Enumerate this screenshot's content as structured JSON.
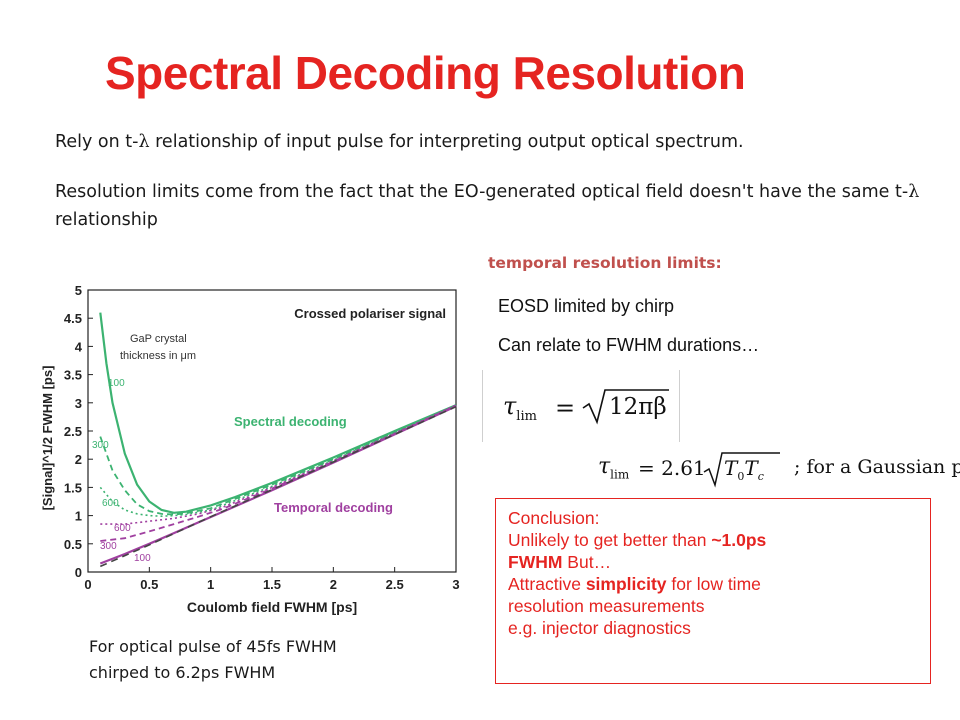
{
  "title": "Spectral Decoding Resolution",
  "para1": {
    "prefix": "Rely on t-",
    "lambda": "λ",
    "suffix": " relationship of input pulse for interpreting output optical spectrum."
  },
  "para2": {
    "prefix": "Resolution limits come from the fact that the EO-generated optical field doesn't have the same t-",
    "lambda": "λ",
    "suffix": " relationship"
  },
  "subheading": "temporal resolution limits:",
  "right": {
    "line1": "EOSD limited by chirp",
    "line2": "Can relate to FWHM durations…"
  },
  "equations": {
    "eq1": {
      "lhs": "τ",
      "lhs_sub": "lim",
      "eq": "=",
      "coef": "12πβ"
    },
    "eq2": {
      "lhs": "τ",
      "lhs_sub": "lim",
      "eq": "= 2.61",
      "a": "T",
      "a_sub": "0",
      "b": "T",
      "b_sub": "c",
      "note": "; for a Gaussian pulse"
    }
  },
  "conclusion": {
    "heading": "Conclusion:",
    "l2_pre": "Unlikely to get better than ",
    "l2_bold": "~1.0ps",
    "l3_bold": "FWHM",
    "l3_rest": " But…",
    "l4_pre": "Attractive ",
    "l4_bold": "simplicity",
    "l4_post": " for low time",
    "l5": "resolution measurements",
    "l6": "e.g. injector diagnostics"
  },
  "caption": {
    "line1": "For optical pulse of 45fs FWHM",
    "line2": "chirped to 6.2ps FWHM"
  },
  "chart_data": {
    "type": "line",
    "title": "",
    "xlabel": "Coulomb field FWHM [ps]",
    "ylabel": "[Signal]^1/2    FWHM [ps]",
    "xlim": [
      0,
      3
    ],
    "ylim": [
      0,
      5
    ],
    "x_ticks": [
      "0",
      "0.5",
      "1",
      "1.5",
      "2",
      "2.5",
      "3"
    ],
    "y_ticks": [
      "0",
      "0.5",
      "1",
      "1.5",
      "2",
      "2.5",
      "3",
      "3.5",
      "4",
      "4.5",
      "5"
    ],
    "annotations": {
      "crossed": "Crossed polariser signal",
      "gap": "GaP crystal",
      "thickness": "thickness in μm",
      "spectral": "Spectral decoding",
      "temporal": "Temporal decoding",
      "s100": "100",
      "s300": "300",
      "s600": "600",
      "t600": "600",
      "t300": "300",
      "t100": "100"
    },
    "colors": {
      "spectral": "#3cb371",
      "temporal": "#a040a0",
      "reference": "#444444"
    },
    "series": [
      {
        "x": [
          0.1,
          0.15,
          0.2,
          0.3,
          0.4,
          0.5,
          0.6,
          0.7,
          0.8,
          1.0,
          1.2,
          1.5,
          1.8,
          2.0,
          2.5,
          3.0
        ],
        "y": [
          4.6,
          3.7,
          3.0,
          2.1,
          1.55,
          1.25,
          1.1,
          1.05,
          1.07,
          1.18,
          1.33,
          1.58,
          1.85,
          2.03,
          2.5,
          2.96
        ]
      },
      {
        "x": [
          0.1,
          0.2,
          0.3,
          0.4,
          0.5,
          0.6,
          0.7,
          0.8,
          1.0,
          1.5,
          2.0,
          2.5,
          3.0
        ],
        "y": [
          2.4,
          1.8,
          1.45,
          1.2,
          1.08,
          1.03,
          1.02,
          1.04,
          1.13,
          1.55,
          2.0,
          2.48,
          2.96
        ]
      },
      {
        "x": [
          0.1,
          0.2,
          0.3,
          0.4,
          0.5,
          0.6,
          0.7,
          0.8,
          1.0,
          1.5,
          2.0,
          2.5,
          3.0
        ],
        "y": [
          1.5,
          1.25,
          1.1,
          1.03,
          1.0,
          0.99,
          1.0,
          1.02,
          1.1,
          1.52,
          1.98,
          2.47,
          2.96
        ]
      },
      {
        "x": [
          0.1,
          0.3,
          0.5,
          0.7,
          0.9,
          1.1,
          1.5,
          2.0,
          2.5,
          3.0
        ],
        "y": [
          0.85,
          0.85,
          0.9,
          0.95,
          1.03,
          1.15,
          1.5,
          1.97,
          2.46,
          2.96
        ]
      },
      {
        "x": [
          0.1,
          0.3,
          0.5,
          0.7,
          0.9,
          1.1,
          1.5,
          2.0,
          2.5,
          3.0
        ],
        "y": [
          0.55,
          0.6,
          0.72,
          0.85,
          0.98,
          1.12,
          1.48,
          1.96,
          2.45,
          2.95
        ]
      },
      {
        "x": [
          0.1,
          0.3,
          0.5,
          0.7,
          0.9,
          1.1,
          1.5,
          2.0,
          2.5,
          3.0
        ],
        "y": [
          0.15,
          0.32,
          0.5,
          0.69,
          0.88,
          1.07,
          1.45,
          1.94,
          2.44,
          2.94
        ]
      },
      {
        "x": [
          0.1,
          0.5,
          1.0,
          1.5,
          2.0,
          2.5,
          3.0
        ],
        "y": [
          0.1,
          0.48,
          0.98,
          1.46,
          1.95,
          2.44,
          2.93
        ]
      }
    ]
  }
}
